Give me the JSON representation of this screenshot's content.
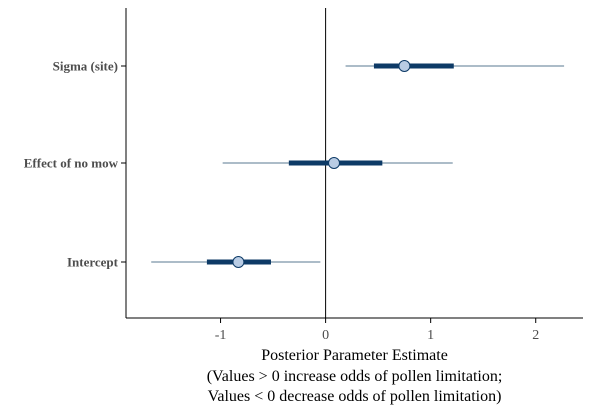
{
  "chart_data": {
    "type": "interval",
    "xlabel_lines": [
      "Posterior Parameter Estimate",
      "(Values > 0 increase odds of pollen limitation;",
      "Values < 0 decrease odds of pollen limitation)"
    ],
    "ylabel": "",
    "xlim": [
      -1.9,
      2.45
    ],
    "x_ticks": [
      -1,
      0,
      1,
      2
    ],
    "x_tick_labels": [
      "-1",
      "0",
      "1",
      "2"
    ],
    "reference_line_x": 0,
    "grid": false,
    "colors": {
      "thin_interval": "#5a7a92",
      "thick_interval": "#0d3a66",
      "point_fill": "#b9cce4",
      "point_stroke": "#0d3a66",
      "axis": "#000000",
      "text": "#4d4d4d"
    },
    "parameters": [
      {
        "label": "Sigma (site)",
        "point": 0.75,
        "inner": [
          0.46,
          1.22
        ],
        "outer": [
          0.19,
          2.27
        ]
      },
      {
        "label": "Effect of no mow",
        "point": 0.08,
        "inner": [
          -0.35,
          0.54
        ],
        "outer": [
          -0.98,
          1.21
        ]
      },
      {
        "label": "Intercept",
        "point": -0.83,
        "inner": [
          -1.13,
          -0.52
        ],
        "outer": [
          -1.66,
          -0.05
        ]
      }
    ]
  }
}
